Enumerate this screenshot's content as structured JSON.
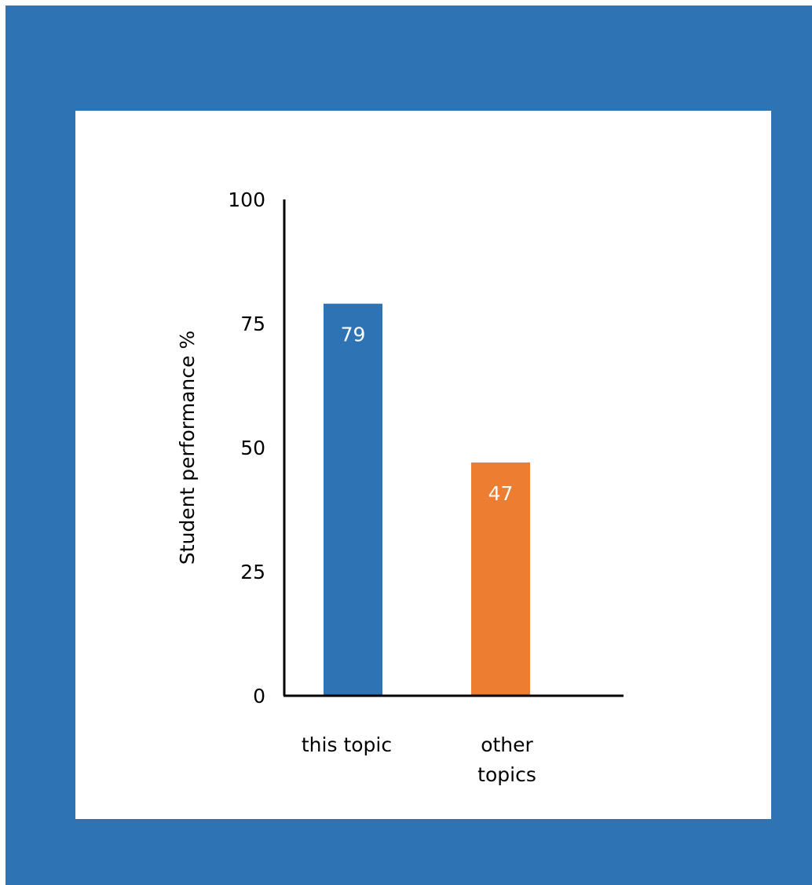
{
  "chart_data": {
    "type": "bar",
    "title": "",
    "xlabel": "",
    "ylabel": "Student performance %",
    "ylim": [
      0,
      100
    ],
    "yticks": [
      0,
      25,
      50,
      75,
      100
    ],
    "yticks_text": [
      "0",
      "25",
      "50",
      "75",
      "100"
    ],
    "categories": [
      "this topic",
      "other topics"
    ],
    "category_lines": [
      [
        "this topic"
      ],
      [
        "other",
        "topics"
      ]
    ],
    "values": [
      79,
      47
    ],
    "data_labels": [
      "79",
      "47"
    ],
    "bar_colors": [
      "#2e74b5",
      "#ed7d31"
    ],
    "grid": false,
    "legend": "none"
  },
  "colors": {
    "frame": "#2e74b5",
    "panel": "#ffffff"
  }
}
